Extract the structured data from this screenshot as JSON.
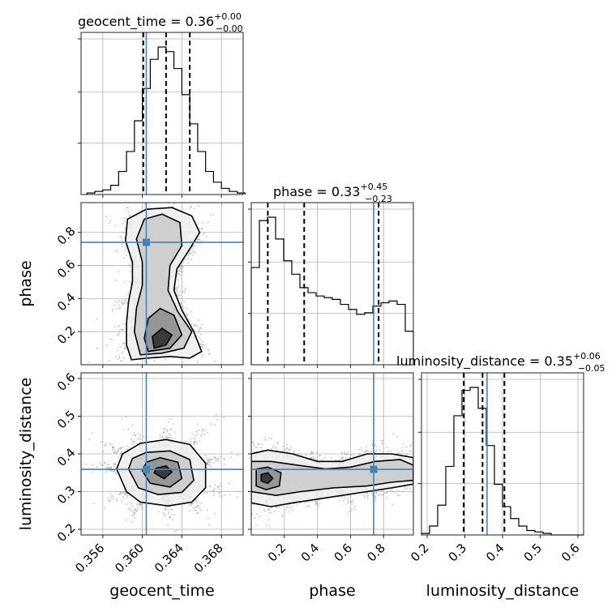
{
  "chart_data": {
    "type": "corner",
    "parameters": [
      {
        "name": "geocent_time",
        "axis_label": "geocent_time",
        "range": [
          0.3538,
          0.3702
        ],
        "ticks": [
          0.356,
          0.36,
          0.364,
          0.368
        ],
        "tick_labels": [
          "0.356",
          "0.360",
          "0.364",
          "0.368"
        ],
        "truth": 0.3604,
        "summary": {
          "label": "geocent_time",
          "median": "0.36",
          "plus": "+0.00",
          "minus": "−0.00"
        },
        "quantiles": [
          0.3601,
          0.3624,
          0.3648
        ]
      },
      {
        "name": "phase",
        "axis_label": "phase",
        "range": [
          0.0,
          0.98
        ],
        "ticks": [
          0.2,
          0.4,
          0.6,
          0.8
        ],
        "tick_labels": [
          "0.2",
          "0.4",
          "0.6",
          "0.8"
        ],
        "truth": 0.74,
        "summary": {
          "label": "phase",
          "median": "0.33",
          "plus": "+0.45",
          "minus": "−0.23"
        },
        "quantiles": [
          0.1,
          0.32,
          0.77
        ]
      },
      {
        "name": "luminosity_distance",
        "axis_label": "luminosity_distance",
        "range": [
          0.185,
          0.615
        ],
        "ticks": [
          0.2,
          0.3,
          0.4,
          0.5,
          0.6
        ],
        "tick_labels": [
          "0.2",
          "0.3",
          "0.4",
          "0.5",
          "0.6"
        ],
        "truth": 0.359,
        "summary": {
          "label": "luminosity_distance",
          "median": "0.35",
          "plus": "+0.06",
          "minus": "−0.05"
        },
        "quantiles": [
          0.297,
          0.347,
          0.405
        ]
      }
    ],
    "histograms": [
      {
        "param": "geocent_time",
        "bins": [
          0.3544,
          0.3552,
          0.356,
          0.3568,
          0.3576,
          0.3584,
          0.3592,
          0.36,
          0.3608,
          0.3616,
          0.3624,
          0.3632,
          0.364,
          0.3648,
          0.3656,
          0.3664,
          0.3672,
          0.368,
          0.3688,
          0.3696,
          0.3704
        ],
        "counts": [
          1,
          2,
          3,
          6,
          15,
          28,
          48,
          69,
          88,
          96,
          93,
          82,
          65,
          46,
          28,
          15,
          8,
          4,
          2,
          1
        ]
      },
      {
        "param": "phase",
        "bins": [
          0.0,
          0.049,
          0.098,
          0.147,
          0.196,
          0.245,
          0.294,
          0.343,
          0.392,
          0.441,
          0.49,
          0.539,
          0.588,
          0.637,
          0.686,
          0.735,
          0.784,
          0.833,
          0.882,
          0.931,
          0.98
        ],
        "counts": [
          58,
          86,
          88,
          75,
          62,
          54,
          46,
          43,
          41,
          40,
          39,
          36,
          33,
          30,
          31,
          35,
          37,
          38,
          36,
          20
        ]
      },
      {
        "param": "luminosity_distance",
        "bins": [
          0.185,
          0.2065,
          0.228,
          0.2495,
          0.271,
          0.2925,
          0.314,
          0.3355,
          0.357,
          0.3785,
          0.4,
          0.4215,
          0.443,
          0.4645,
          0.486,
          0.5075,
          0.529,
          0.5505,
          0.572,
          0.5935,
          0.615
        ],
        "counts": [
          1,
          6,
          20,
          46,
          80,
          97,
          99,
          85,
          60,
          34,
          19,
          11,
          6,
          3,
          2,
          1,
          0,
          0,
          0,
          0
        ]
      }
    ],
    "contours": [
      {
        "x": "geocent_time",
        "y": "phase",
        "levels": [
          [
            [
              0.3589,
              0.03
            ],
            [
              0.3605,
              0.04
            ],
            [
              0.3628,
              0.05
            ],
            [
              0.3648,
              0.04
            ],
            [
              0.366,
              0.08
            ],
            [
              0.3652,
              0.2
            ],
            [
              0.364,
              0.33
            ],
            [
              0.3632,
              0.45
            ],
            [
              0.3635,
              0.58
            ],
            [
              0.3648,
              0.7
            ],
            [
              0.3658,
              0.8
            ],
            [
              0.365,
              0.9
            ],
            [
              0.363,
              0.95
            ],
            [
              0.3604,
              0.94
            ],
            [
              0.3585,
              0.88
            ],
            [
              0.3583,
              0.75
            ],
            [
              0.359,
              0.62
            ],
            [
              0.359,
              0.5
            ],
            [
              0.3586,
              0.38
            ],
            [
              0.3584,
              0.25
            ],
            [
              0.3584,
              0.12
            ]
          ],
          [
            [
              0.3598,
              0.06
            ],
            [
              0.362,
              0.07
            ],
            [
              0.3642,
              0.1
            ],
            [
              0.365,
              0.2
            ],
            [
              0.3636,
              0.32
            ],
            [
              0.3626,
              0.45
            ],
            [
              0.3628,
              0.6
            ],
            [
              0.364,
              0.72
            ],
            [
              0.3638,
              0.86
            ],
            [
              0.362,
              0.91
            ],
            [
              0.3602,
              0.88
            ],
            [
              0.3594,
              0.76
            ],
            [
              0.36,
              0.62
            ],
            [
              0.36,
              0.48
            ],
            [
              0.3594,
              0.34
            ],
            [
              0.3592,
              0.2
            ]
          ],
          [
            [
              0.3606,
              0.08
            ],
            [
              0.3628,
              0.1
            ],
            [
              0.364,
              0.18
            ],
            [
              0.3632,
              0.3
            ],
            [
              0.3618,
              0.34
            ],
            [
              0.3606,
              0.28
            ],
            [
              0.3602,
              0.16
            ]
          ],
          [
            [
              0.3612,
              0.1
            ],
            [
              0.3624,
              0.12
            ],
            [
              0.363,
              0.18
            ],
            [
              0.362,
              0.22
            ],
            [
              0.361,
              0.17
            ]
          ]
        ]
      },
      {
        "x": "geocent_time",
        "y": "luminosity_distance",
        "levels": [
          [
            [
              0.3574,
              0.36
            ],
            [
              0.3584,
              0.3
            ],
            [
              0.3598,
              0.272
            ],
            [
              0.3626,
              0.262
            ],
            [
              0.365,
              0.272
            ],
            [
              0.3664,
              0.31
            ],
            [
              0.3664,
              0.375
            ],
            [
              0.3648,
              0.425
            ],
            [
              0.3624,
              0.438
            ],
            [
              0.3598,
              0.428
            ],
            [
              0.358,
              0.4
            ]
          ],
          [
            [
              0.3586,
              0.36
            ],
            [
              0.3596,
              0.31
            ],
            [
              0.3616,
              0.292
            ],
            [
              0.364,
              0.298
            ],
            [
              0.3652,
              0.33
            ],
            [
              0.3648,
              0.385
            ],
            [
              0.3628,
              0.408
            ],
            [
              0.3604,
              0.404
            ],
            [
              0.359,
              0.388
            ]
          ],
          [
            [
              0.36,
              0.355
            ],
            [
              0.3608,
              0.322
            ],
            [
              0.3628,
              0.312
            ],
            [
              0.364,
              0.335
            ],
            [
              0.3636,
              0.378
            ],
            [
              0.3618,
              0.39
            ],
            [
              0.3604,
              0.378
            ]
          ],
          [
            [
              0.3612,
              0.35
            ],
            [
              0.3622,
              0.334
            ],
            [
              0.363,
              0.352
            ],
            [
              0.3624,
              0.368
            ],
            [
              0.3614,
              0.362
            ]
          ]
        ]
      },
      {
        "x": "phase",
        "y": "luminosity_distance",
        "levels": [
          [
            [
              0.0,
              0.4
            ],
            [
              0.1,
              0.41
            ],
            [
              0.25,
              0.4
            ],
            [
              0.4,
              0.38
            ],
            [
              0.55,
              0.38
            ],
            [
              0.7,
              0.4
            ],
            [
              0.85,
              0.4
            ],
            [
              0.98,
              0.39
            ],
            [
              0.98,
              0.32
            ],
            [
              0.85,
              0.31
            ],
            [
              0.7,
              0.3
            ],
            [
              0.55,
              0.29
            ],
            [
              0.4,
              0.28
            ],
            [
              0.25,
              0.27
            ],
            [
              0.12,
              0.26
            ],
            [
              0.0,
              0.27
            ]
          ],
          [
            [
              0.0,
              0.38
            ],
            [
              0.12,
              0.38
            ],
            [
              0.28,
              0.37
            ],
            [
              0.45,
              0.36
            ],
            [
              0.6,
              0.365
            ],
            [
              0.75,
              0.38
            ],
            [
              0.9,
              0.385
            ],
            [
              0.98,
              0.37
            ],
            [
              0.98,
              0.33
            ],
            [
              0.85,
              0.325
            ],
            [
              0.7,
              0.315
            ],
            [
              0.5,
              0.31
            ],
            [
              0.3,
              0.3
            ],
            [
              0.15,
              0.29
            ],
            [
              0.0,
              0.3
            ]
          ],
          [
            [
              0.03,
              0.36
            ],
            [
              0.1,
              0.365
            ],
            [
              0.18,
              0.35
            ],
            [
              0.17,
              0.315
            ],
            [
              0.09,
              0.305
            ],
            [
              0.03,
              0.315
            ]
          ],
          [
            [
              0.06,
              0.345
            ],
            [
              0.1,
              0.35
            ],
            [
              0.13,
              0.335
            ],
            [
              0.1,
              0.322
            ],
            [
              0.06,
              0.328
            ]
          ]
        ]
      }
    ],
    "grid": true,
    "colors": {
      "truth": "#4682b4",
      "lines": "#000000",
      "scatter": "#9e9e9e",
      "density_dark": "#111111"
    }
  }
}
